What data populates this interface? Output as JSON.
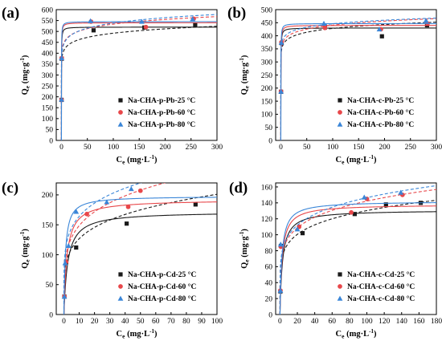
{
  "colors": {
    "s25": "#1a1a1a",
    "s60": "#e8474a",
    "s80": "#3a86d8"
  },
  "chart_data": [
    {
      "type": "scatter",
      "panel_label": "(a)",
      "xlabel_main": "C",
      "xlabel_sub": "e",
      "xlabel_unit": " (mg·L",
      "ylabel_main": "Q",
      "ylabel_sub": "e",
      "ylabel_unit": " (mg·g",
      "xlim": [
        -10,
        300
      ],
      "ylim": [
        0,
        600
      ],
      "xticks": [
        0,
        50,
        100,
        150,
        200,
        250,
        300
      ],
      "yticks": [
        0,
        50,
        100,
        150,
        200,
        250,
        300,
        350,
        400,
        450,
        500,
        550,
        600
      ],
      "legend_position": "lower-right",
      "series": [
        {
          "name": "Na-CHA-p-Pb-25 °C",
          "marker": "square",
          "points": [
            [
              0.2,
              186
            ],
            [
              0.6,
              375
            ],
            [
              62,
              505
            ],
            [
              160,
              518
            ],
            [
              258,
              530
            ]
          ],
          "solid": {
            "qm": 520,
            "k": 8
          },
          "dashed": {
            "kf": 378,
            "n": 17.5
          }
        },
        {
          "name": "Na-CHA-p-Pb-60 °C",
          "marker": "circle",
          "points": [
            [
              0.2,
              186
            ],
            [
              0.5,
              377
            ],
            [
              57,
              545
            ],
            [
              163,
              520
            ],
            [
              255,
              558
            ]
          ],
          "solid": {
            "qm": 540,
            "k": 8
          },
          "dashed": {
            "kf": 410,
            "n": 17.5
          }
        },
        {
          "name": "Na-CHA-p-Pb-80 °C",
          "marker": "triangle",
          "points": [
            [
              0.2,
              188
            ],
            [
              0.4,
              378
            ],
            [
              56,
              548
            ],
            [
              155,
              545
            ],
            [
              253,
              557
            ]
          ],
          "solid": {
            "qm": 545,
            "k": 9
          },
          "dashed": {
            "kf": 400,
            "n": 15.5
          }
        }
      ]
    },
    {
      "type": "scatter",
      "panel_label": "(b)",
      "xlabel_main": "C",
      "xlabel_sub": "e",
      "xlabel_unit": " (mg·L",
      "ylabel_main": "Q",
      "ylabel_sub": "e",
      "ylabel_unit": " (mg·g",
      "xlim": [
        -10,
        300
      ],
      "ylim": [
        0,
        500
      ],
      "xticks": [
        0,
        50,
        100,
        150,
        200,
        250,
        300
      ],
      "yticks": [
        0,
        50,
        100,
        150,
        200,
        250,
        300,
        350,
        400,
        450,
        500
      ],
      "legend_position": "lower-right",
      "series": [
        {
          "name": "Na-CHA-c-Pb-25 °C",
          "marker": "square",
          "points": [
            [
              0.3,
              186
            ],
            [
              1.5,
              372
            ],
            [
              85,
              435
            ],
            [
              195,
              398
            ],
            [
              282,
              440
            ]
          ],
          "solid": {
            "qm": 430,
            "k": 6
          },
          "dashed": {
            "kf": 340,
            "n": 20
          }
        },
        {
          "name": "Na-CHA-c-Pb-60 °C",
          "marker": "circle",
          "points": [
            [
              0.3,
              187
            ],
            [
              1.2,
              375
            ],
            [
              85,
              430
            ],
            [
              193,
              425
            ],
            [
              283,
              447
            ]
          ],
          "solid": {
            "qm": 440,
            "k": 6
          },
          "dashed": {
            "kf": 350,
            "n": 20
          }
        },
        {
          "name": "Na-CHA-c-Pb-80 °C",
          "marker": "triangle",
          "points": [
            [
              0.3,
              187
            ],
            [
              1,
              374
            ],
            [
              83,
              447
            ],
            [
              190,
              425
            ],
            [
              280,
              458
            ]
          ],
          "solid": {
            "qm": 447,
            "k": 7
          },
          "dashed": {
            "kf": 365,
            "n": 23
          }
        }
      ]
    },
    {
      "type": "scatter",
      "panel_label": "(c)",
      "xlabel_main": "C",
      "xlabel_sub": "e",
      "xlabel_unit": " (mg·L",
      "ylabel_main": "Q",
      "ylabel_sub": "e",
      "ylabel_unit": " (mg·g",
      "xlim": [
        -5,
        100
      ],
      "ylim": [
        0,
        220
      ],
      "xticks": [
        0,
        10,
        20,
        30,
        40,
        50,
        60,
        70,
        80,
        90,
        100
      ],
      "yticks": [
        0,
        50,
        100,
        150,
        200
      ],
      "legend_position": "lower-right",
      "series": [
        {
          "name": "Na-CHA-p-Cd-25 °C",
          "marker": "square",
          "points": [
            [
              0.3,
              30
            ],
            [
              1.5,
              88
            ],
            [
              8,
              112
            ],
            [
              41,
              152
            ],
            [
              86,
              184
            ]
          ],
          "solid": {
            "qm": 172,
            "k": 0.4
          },
          "dashed": {
            "kf": 80,
            "n": 5
          }
        },
        {
          "name": "Na-CHA-p-Cd-60 °C",
          "marker": "circle",
          "points": [
            [
              0.3,
              30
            ],
            [
              1.5,
              88
            ],
            [
              15,
              168
            ],
            [
              42,
              180
            ],
            [
              50,
              207
            ]
          ],
          "solid": {
            "qm": 192,
            "k": 0.5
          },
          "dashed": {
            "kf": 92,
            "n": 4.8
          }
        },
        {
          "name": "Na-CHA-p-Cd-80 °C",
          "marker": "triangle",
          "points": [
            [
              0.3,
              30
            ],
            [
              0.8,
              86
            ],
            [
              3,
              115
            ],
            [
              8,
              172
            ],
            [
              28,
              188
            ],
            [
              44,
              210
            ]
          ],
          "solid": {
            "qm": 198,
            "k": 1
          },
          "dashed": {
            "kf": 108,
            "n": 5.5
          }
        }
      ]
    },
    {
      "type": "scatter",
      "panel_label": "(d)",
      "xlabel_main": "C",
      "xlabel_sub": "e",
      "xlabel_unit": " (mg·L",
      "ylabel_main": "Q",
      "ylabel_sub": "e",
      "ylabel_unit": " (mg·g",
      "xlim": [
        -5,
        180
      ],
      "ylim": [
        0,
        165
      ],
      "xticks": [
        0,
        20,
        40,
        60,
        80,
        100,
        120,
        140,
        160,
        180
      ],
      "yticks": [
        0,
        20,
        40,
        60,
        80,
        100,
        120,
        140,
        160
      ],
      "legend_position": "lower-right",
      "series": [
        {
          "name": "Na-CHA-c-Cd-25 °C",
          "marker": "square",
          "points": [
            [
              0.5,
              29
            ],
            [
              1,
              86
            ],
            [
              26,
              102
            ],
            [
              86,
              126
            ],
            [
              122,
              138
            ],
            [
              162,
              140
            ]
          ],
          "solid": {
            "qm": 131,
            "k": 0.35
          },
          "dashed": {
            "kf": 62,
            "n": 6.2
          }
        },
        {
          "name": "Na-CHA-c-Cd-60 °C",
          "marker": "circle",
          "points": [
            [
              0.5,
              30
            ],
            [
              1,
              85
            ],
            [
              22,
              110
            ],
            [
              82,
              128
            ],
            [
              100,
              145
            ],
            [
              141,
              150
            ]
          ],
          "solid": {
            "qm": 138,
            "k": 0.4
          },
          "dashed": {
            "kf": 66,
            "n": 6
          }
        },
        {
          "name": "Na-CHA-c-Cd-80 °C",
          "marker": "triangle",
          "points": [
            [
              0.5,
              30
            ],
            [
              0.8,
              88
            ],
            [
              20,
              107
            ],
            [
              97,
              147
            ],
            [
              139,
              153
            ]
          ],
          "solid": {
            "qm": 142,
            "k": 0.45
          },
          "dashed": {
            "kf": 68,
            "n": 6
          }
        }
      ]
    }
  ]
}
